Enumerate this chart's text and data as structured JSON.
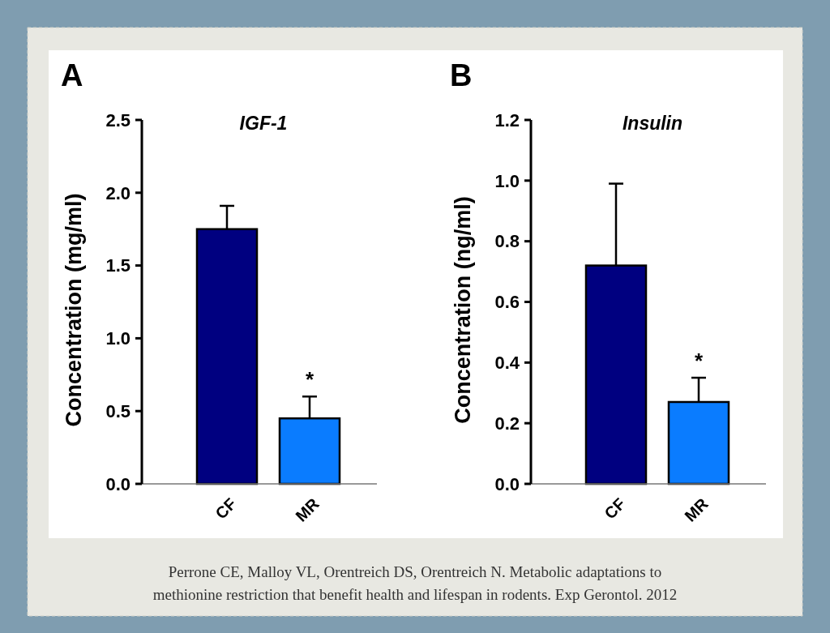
{
  "chart_data": [
    {
      "type": "bar",
      "title": "IGF-1",
      "ylabel": "Concentration (mg/ml)",
      "categories": [
        "CF",
        "MR"
      ],
      "values": [
        1.75,
        0.45
      ],
      "errors": [
        0.16,
        0.15
      ],
      "colors": [
        "#000080",
        "#0a7cff"
      ],
      "ylim": [
        0,
        2.5
      ],
      "yticks": [
        {
          "value": 0,
          "label": "0.0"
        },
        {
          "value": 0.5,
          "label": "0.5"
        },
        {
          "value": 1,
          "label": "1.0"
        },
        {
          "value": 1.5,
          "label": "1.5"
        },
        {
          "value": 2,
          "label": "2.0"
        },
        {
          "value": 2.5,
          "label": "2.5"
        }
      ],
      "grid": false,
      "annotations": [
        "A",
        {
          "text": "*",
          "x": "MR",
          "y": 0.6
        }
      ]
    },
    {
      "type": "bar",
      "title": "Insulin",
      "ylabel": "Concentration (ng/ml)",
      "categories": [
        "CF",
        "MR"
      ],
      "values": [
        0.72,
        0.27
      ],
      "errors": [
        0.27,
        0.08
      ],
      "colors": [
        "#000080",
        "#0a7cff"
      ],
      "ylim": [
        0,
        1.2
      ],
      "yticks": [
        {
          "value": 0,
          "label": "0.0"
        },
        {
          "value": 0.2,
          "label": "0.2"
        },
        {
          "value": 0.4,
          "label": "0.4"
        },
        {
          "value": 0.6,
          "label": "0.6"
        },
        {
          "value": 0.8,
          "label": "0.8"
        },
        {
          "value": 1,
          "label": "1.0"
        },
        {
          "value": 1.2,
          "label": "1.2"
        }
      ],
      "grid": false,
      "annotations": [
        "B",
        {
          "text": "*",
          "x": "MR",
          "y": 0.35
        },
        "Perrone CE, Malloy VL, Orentreich DS, Orentreich N. Metabolic adaptations to methionine restriction that benefit health and lifespan in rodents. Exp Gerontol. 2012"
      ]
    }
  ]
}
